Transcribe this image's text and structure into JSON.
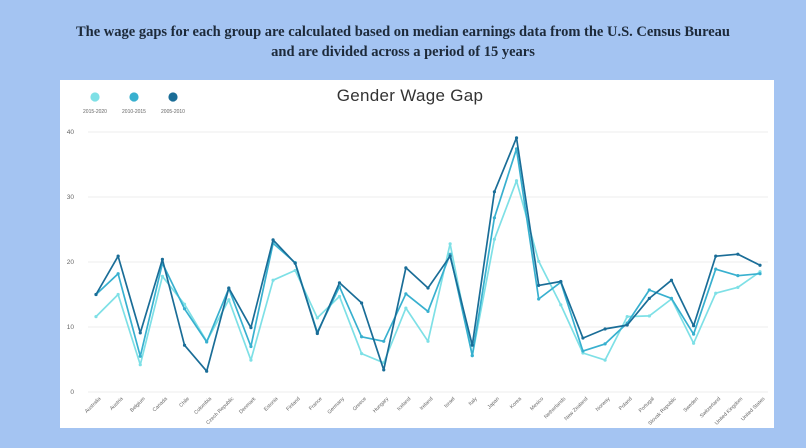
{
  "caption": {
    "line1": "The wage gaps for each group are calculated based on median earnings data from the U.S. Census Bureau",
    "line2": "and are divided across a period of 15 years"
  },
  "chart_data": {
    "type": "line",
    "title": "Gender Wage Gap",
    "xlabel": "",
    "ylabel": "",
    "ylim": [
      0,
      40
    ],
    "yticks": [
      0,
      10,
      20,
      30,
      40
    ],
    "grid": true,
    "legend_position": "top-left",
    "categories": [
      "Australia",
      "Austria",
      "Belgium",
      "Canada",
      "Chile",
      "Colombia",
      "Czech Republic",
      "Denmark",
      "Estonia",
      "Finland",
      "France",
      "Germany",
      "Greece",
      "Hungary",
      "Iceland",
      "Ireland",
      "Israel",
      "Italy",
      "Japan",
      "Korea",
      "Mexico",
      "Netherlands",
      "New Zealand",
      "Norway",
      "Poland",
      "Portugal",
      "Slovak Republic",
      "Sweden",
      "Switzerland",
      "United Kingdom",
      "United States"
    ],
    "series": [
      {
        "name": "2015-2020",
        "color": "#7ee0e6",
        "values": [
          11.6,
          15,
          4.2,
          17.8,
          13.5,
          7.8,
          14.2,
          4.9,
          17.2,
          18.7,
          11.4,
          14.7,
          5.9,
          4.5,
          12.9,
          7.8,
          22.8,
          5.6,
          23.5,
          32.5,
          20.1,
          13.4,
          6,
          4.9,
          11.6,
          11.7,
          14.3,
          7.5,
          15.2,
          16.1,
          18.5
        ]
      },
      {
        "name": "2010-2015",
        "color": "#38b0cf",
        "values": [
          15,
          18.2,
          5.5,
          19.8,
          12.8,
          7.7,
          15.9,
          7,
          22.9,
          19.9,
          9.2,
          16.2,
          8.5,
          7.8,
          15.1,
          12.4,
          21.2,
          5.6,
          26.8,
          37.4,
          14.3,
          16.9,
          6.3,
          7.4,
          10.6,
          15.7,
          14.4,
          8.9,
          18.9,
          17.9,
          18.2
        ]
      },
      {
        "name": "2005-2010",
        "color": "#1a6d97",
        "values": [
          15,
          20.9,
          9.1,
          20.4,
          7.2,
          3.2,
          16,
          9.9,
          23.4,
          19.8,
          9,
          16.8,
          13.7,
          3.4,
          19.1,
          16,
          20.9,
          7.2,
          30.8,
          39.1,
          16.4,
          17,
          8.3,
          9.7,
          10.3,
          14.4,
          17.2,
          10.2,
          20.9,
          21.2,
          19.5
        ]
      }
    ]
  }
}
